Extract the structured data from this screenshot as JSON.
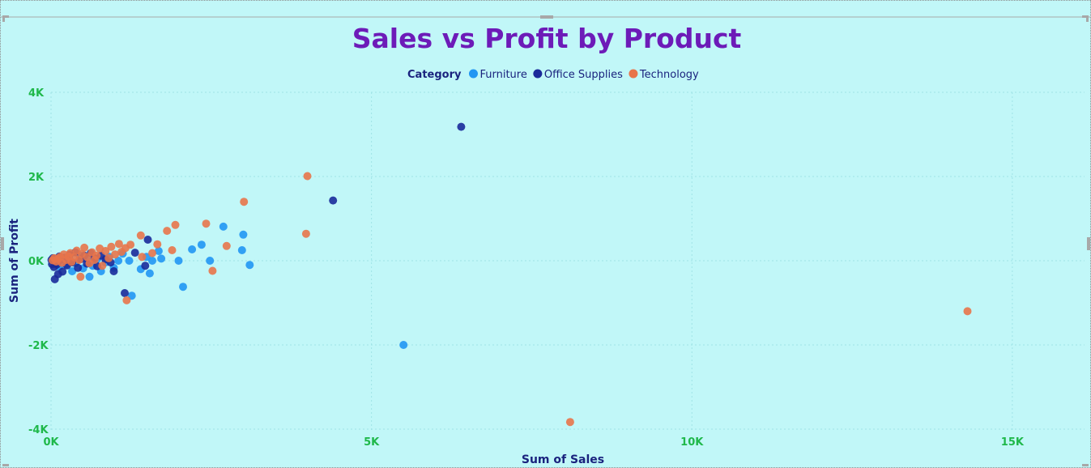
{
  "chart_data": {
    "type": "scatter",
    "title": "Sales vs Profit by Product",
    "xlabel": "Sum of Sales",
    "ylabel": "Sum of Profit",
    "xlim": [
      0,
      16000
    ],
    "ylim": [
      -4000,
      4000
    ],
    "x_ticks": [
      0,
      5000,
      10000,
      15000
    ],
    "x_tick_labels": [
      "0K",
      "5K",
      "10K",
      "15K"
    ],
    "y_ticks": [
      -4000,
      -2000,
      0,
      2000,
      4000
    ],
    "y_tick_labels": [
      "-4K",
      "-2K",
      "0K",
      "2K",
      "4K"
    ],
    "grid": true,
    "legend": {
      "title": "Category",
      "position": "top-center"
    },
    "series": [
      {
        "name": "Furniture",
        "color": "#2196f3",
        "points": [
          [
            5500,
            -2000
          ],
          [
            3100,
            -100
          ],
          [
            3000,
            620
          ],
          [
            2980,
            250
          ],
          [
            2690,
            810
          ],
          [
            2480,
            0
          ],
          [
            2350,
            380
          ],
          [
            2200,
            270
          ],
          [
            2060,
            -620
          ],
          [
            1990,
            0
          ],
          [
            1720,
            50
          ],
          [
            1680,
            230
          ],
          [
            1580,
            0
          ],
          [
            1540,
            -300
          ],
          [
            1490,
            90
          ],
          [
            1400,
            -200
          ],
          [
            1260,
            -830
          ],
          [
            1220,
            0
          ],
          [
            1120,
            170
          ],
          [
            1050,
            0
          ],
          [
            980,
            -170
          ],
          [
            910,
            90
          ],
          [
            850,
            -40
          ],
          [
            780,
            -250
          ],
          [
            720,
            40
          ],
          [
            650,
            -120
          ],
          [
            600,
            -380
          ],
          [
            560,
            60
          ],
          [
            500,
            -180
          ],
          [
            450,
            120
          ],
          [
            380,
            -60
          ],
          [
            330,
            -250
          ],
          [
            280,
            80
          ],
          [
            230,
            -90
          ],
          [
            180,
            30
          ],
          [
            130,
            -140
          ],
          [
            90,
            40
          ],
          [
            50,
            -20
          ]
        ]
      },
      {
        "name": "Office Supplies",
        "color": "#1a2a9a",
        "points": [
          [
            6400,
            3180
          ],
          [
            4400,
            1430
          ],
          [
            1510,
            500
          ],
          [
            1470,
            -120
          ],
          [
            1150,
            -770
          ],
          [
            1310,
            190
          ],
          [
            980,
            -250
          ],
          [
            930,
            -40
          ],
          [
            850,
            30
          ],
          [
            780,
            120
          ],
          [
            720,
            -130
          ],
          [
            680,
            60
          ],
          [
            620,
            180
          ],
          [
            560,
            -70
          ],
          [
            520,
            120
          ],
          [
            470,
            40
          ],
          [
            420,
            -170
          ],
          [
            380,
            200
          ],
          [
            330,
            -40
          ],
          [
            290,
            140
          ],
          [
            250,
            -110
          ],
          [
            210,
            70
          ],
          [
            180,
            -260
          ],
          [
            150,
            20
          ],
          [
            130,
            100
          ],
          [
            110,
            -320
          ],
          [
            90,
            -90
          ],
          [
            75,
            40
          ],
          [
            60,
            -440
          ],
          [
            45,
            -150
          ],
          [
            30,
            60
          ],
          [
            15,
            -80
          ],
          [
            8,
            20
          ]
        ]
      },
      {
        "name": "Technology",
        "color": "#e8744a",
        "points": [
          [
            14300,
            -1200
          ],
          [
            8100,
            -3830
          ],
          [
            4000,
            2010
          ],
          [
            3980,
            640
          ],
          [
            3010,
            1400
          ],
          [
            2740,
            350
          ],
          [
            2520,
            -240
          ],
          [
            2420,
            880
          ],
          [
            1940,
            850
          ],
          [
            1890,
            250
          ],
          [
            1810,
            710
          ],
          [
            1660,
            390
          ],
          [
            1580,
            180
          ],
          [
            1420,
            90
          ],
          [
            1400,
            600
          ],
          [
            1180,
            -940
          ],
          [
            1240,
            380
          ],
          [
            1160,
            300
          ],
          [
            1100,
            210
          ],
          [
            1060,
            400
          ],
          [
            1000,
            150
          ],
          [
            940,
            330
          ],
          [
            900,
            60
          ],
          [
            850,
            230
          ],
          [
            800,
            -120
          ],
          [
            760,
            290
          ],
          [
            710,
            120
          ],
          [
            680,
            20
          ],
          [
            640,
            200
          ],
          [
            600,
            -60
          ],
          [
            560,
            90
          ],
          [
            520,
            310
          ],
          [
            480,
            160
          ],
          [
            460,
            -380
          ],
          [
            440,
            20
          ],
          [
            400,
            240
          ],
          [
            360,
            80
          ],
          [
            320,
            -30
          ],
          [
            300,
            180
          ],
          [
            270,
            100
          ],
          [
            240,
            20
          ],
          [
            200,
            150
          ],
          [
            170,
            -50
          ],
          [
            140,
            90
          ],
          [
            110,
            40
          ],
          [
            80,
            -20
          ],
          [
            50,
            60
          ],
          [
            25,
            10
          ]
        ]
      }
    ]
  }
}
